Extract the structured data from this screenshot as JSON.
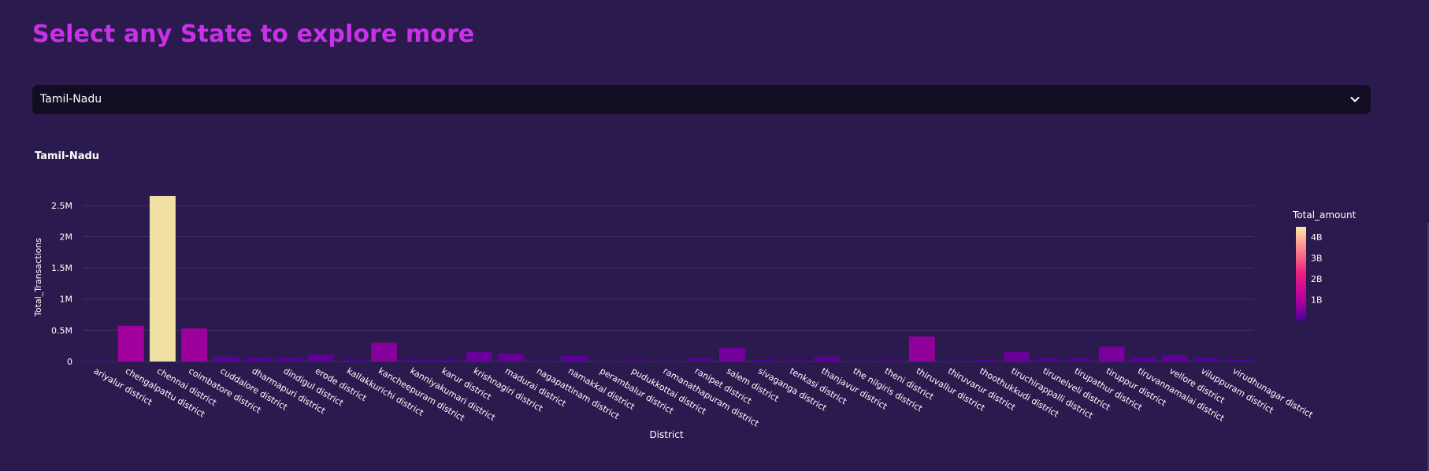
{
  "page": {
    "title": "Select any State to explore more"
  },
  "select": {
    "value": "Tamil-Nadu"
  },
  "colors": {
    "title": "#c931e8",
    "background": "#2b1a4d",
    "select_bg": "#120d22"
  },
  "icons": {
    "select_chevron": "chevron-down-icon"
  },
  "chart_data": {
    "type": "bar",
    "title": "Tamil-Nadu",
    "xlabel": "District",
    "ylabel": "Total_Transactions",
    "ylim": [
      0,
      2700000
    ],
    "yticks": [
      0,
      500000,
      1000000,
      1500000,
      2000000,
      2500000
    ],
    "ytick_labels": [
      "0",
      "0.5M",
      "1M",
      "1.5M",
      "2M",
      "2.5M"
    ],
    "grid": true,
    "categories": [
      "ariyalur district",
      "chengalpattu district",
      "chennai district",
      "coimbatore district",
      "cuddalore district",
      "dharmapuri district",
      "dindigul district",
      "erode district",
      "kallakkurichi district",
      "kancheepuram district",
      "kanniyakumari district",
      "karur district",
      "krishnagiri district",
      "madurai district",
      "nagapattinam district",
      "namakkal district",
      "perambalur district",
      "pudukkottai district",
      "ramanathapuram district",
      "ranipet district",
      "salem district",
      "sivaganga district",
      "tenkasi district",
      "thanjavur district",
      "the nilgiris district",
      "theni district",
      "thiruvallur district",
      "thiruvarur district",
      "thoothukkudi district",
      "tiruchirappalli district",
      "tirunelveli district",
      "tirupathur district",
      "tiruppur district",
      "tiruvannamalai district",
      "vellore district",
      "viluppuram district",
      "virudhunagar district"
    ],
    "values": [
      15000,
      570000,
      2650000,
      530000,
      80000,
      60000,
      60000,
      110000,
      25000,
      300000,
      35000,
      35000,
      150000,
      130000,
      15000,
      90000,
      12000,
      20000,
      15000,
      45000,
      220000,
      25000,
      20000,
      80000,
      15000,
      20000,
      400000,
      15000,
      30000,
      150000,
      45000,
      45000,
      240000,
      70000,
      100000,
      55000,
      35000
    ],
    "color_values": [
      0.03,
      0.85,
      4.3,
      0.8,
      0.15,
      0.1,
      0.1,
      0.2,
      0.05,
      0.6,
      0.07,
      0.07,
      0.3,
      0.25,
      0.03,
      0.15,
      0.02,
      0.04,
      0.03,
      0.08,
      0.4,
      0.05,
      0.04,
      0.15,
      0.03,
      0.04,
      0.7,
      0.03,
      0.06,
      0.3,
      0.08,
      0.08,
      0.45,
      0.13,
      0.2,
      0.1,
      0.07
    ],
    "colorbar": {
      "title": "Total_amount",
      "range": [
        0,
        4500000000
      ],
      "ticks": [
        1000000000,
        2000000000,
        3000000000,
        4000000000
      ],
      "tick_labels": [
        "1B",
        "2B",
        "3B",
        "4B"
      ],
      "placement": "right"
    }
  }
}
